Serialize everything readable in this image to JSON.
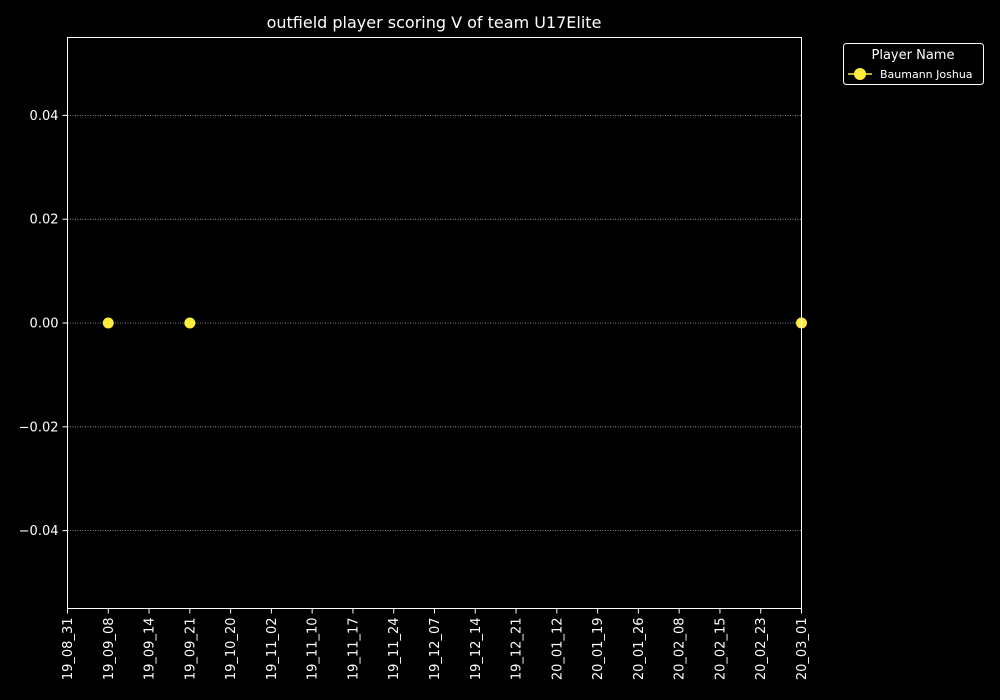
{
  "chart_data": {
    "type": "scatter",
    "title": "outfield player scoring V of team U17Elite",
    "xlabel": "",
    "ylabel": "",
    "x_categories": [
      "19_08_31",
      "19_09_08",
      "19_09_14",
      "19_09_21",
      "19_10_20",
      "19_11_02",
      "19_11_10",
      "19_11_17",
      "19_11_24",
      "19_12_07",
      "19_12_14",
      "19_12_21",
      "20_01_12",
      "20_01_19",
      "20_01_26",
      "20_02_08",
      "20_02_15",
      "20_02_23",
      "20_03_01"
    ],
    "ylim": [
      -0.055,
      0.055
    ],
    "yticks": [
      -0.04,
      -0.02,
      0.0,
      0.02,
      0.04
    ],
    "ytick_labels": [
      "−0.04",
      "−0.02",
      "0.00",
      "0.02",
      "0.04"
    ],
    "grid": "horizontal dotted",
    "legend": {
      "title": "Player Name",
      "placement": "outside top-right"
    },
    "series": [
      {
        "name": "Baumann Joshua",
        "color": "#ffeb3b",
        "points": [
          {
            "x": "19_09_08",
            "y": 0.0
          },
          {
            "x": "19_09_21",
            "y": 0.0
          },
          {
            "x": "20_03_01",
            "y": 0.0
          }
        ]
      }
    ]
  }
}
